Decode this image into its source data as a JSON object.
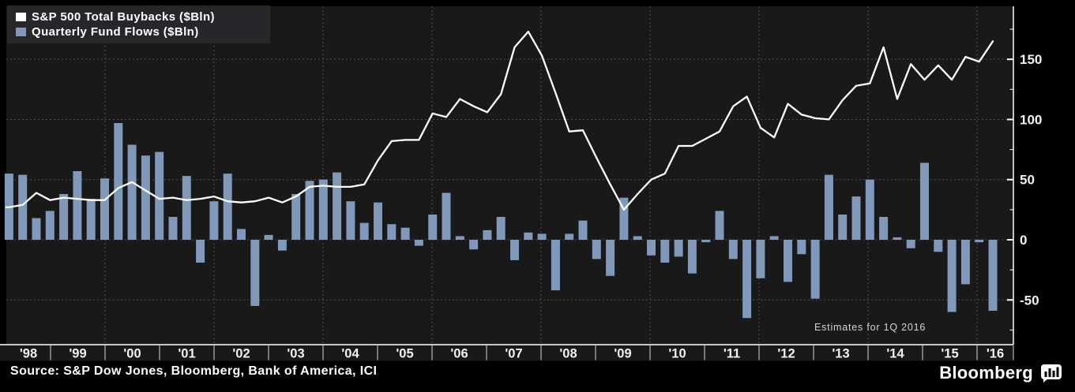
{
  "legend": {
    "series": [
      {
        "label": "S&P 500 Total Buybacks ($Bln)",
        "color": "#ffffff"
      },
      {
        "label": "Quarterly Fund Flows ($Bln)",
        "color": "#8098ba"
      }
    ]
  },
  "annotation": {
    "text": "Estimates for 1Q 2016"
  },
  "footer": {
    "source": "Source: S&P Dow Jones, Bloomberg, Bank of America, ICI",
    "brand": "Bloomberg"
  },
  "colors": {
    "background": "#000000",
    "plot_background": "#191919",
    "bar": "#8098ba",
    "line": "#ffffff",
    "grid": "#505050",
    "axis": "#ffffff",
    "tick_label": "#f2f2f2",
    "legend_background": "#27272b",
    "annotation_text": "#d4d4d4"
  },
  "chart_data": {
    "type": "combo",
    "x_unit": "quarter",
    "x_start": "1998 Q1",
    "x_end": "2016 Q1",
    "x_year_labels": [
      "'98",
      "'99",
      "'00",
      "'01",
      "'02",
      "'03",
      "'04",
      "'05",
      "'06",
      "'07",
      "'08",
      "'09",
      "'10",
      "'11",
      "'12",
      "'13",
      "'14",
      "'15",
      "'16"
    ],
    "y_axis": {
      "major_ticks": [
        150,
        100,
        50,
        0,
        -50
      ],
      "minor_ticks": [
        175,
        125,
        75,
        25,
        -25,
        -75
      ],
      "ylim": [
        -87,
        194
      ]
    },
    "grid": "dashed",
    "legend_position": "top-left",
    "series": [
      {
        "name": "S&P 500 Total Buybacks ($Bln)",
        "type": "line",
        "color": "#ffffff",
        "values": [
          27,
          29,
          39,
          33,
          35,
          34,
          33,
          33,
          43,
          48,
          41,
          34,
          35,
          33,
          34,
          36,
          32,
          31,
          32,
          35,
          31,
          36,
          44,
          45,
          44,
          44,
          46,
          66,
          82,
          83,
          83,
          105,
          102,
          117,
          111,
          106,
          121,
          160,
          173,
          153,
          122,
          90,
          91,
          68,
          46,
          25,
          38,
          50,
          55,
          78,
          78,
          84,
          90,
          111,
          119,
          93,
          85,
          113,
          104,
          101,
          100,
          116,
          128,
          130,
          160,
          117,
          146,
          133,
          145,
          133,
          152,
          148,
          165
        ]
      },
      {
        "name": "Quarterly Fund Flows ($Bln)",
        "type": "bar",
        "color": "#8098ba",
        "values": [
          55,
          54,
          18,
          24,
          38,
          57,
          34,
          51,
          97,
          79,
          70,
          73,
          19,
          53,
          -19,
          32,
          55,
          9,
          -55,
          4,
          -9,
          38,
          49,
          50,
          56,
          32,
          14,
          31,
          13,
          10,
          -5,
          21,
          39,
          3,
          -8,
          8,
          19,
          -17,
          6,
          5,
          -42,
          5,
          16,
          -16,
          -30,
          35,
          3,
          -13,
          -19,
          -14,
          -28,
          -2,
          24,
          -16,
          -65,
          -32,
          3,
          -35,
          -12,
          -49,
          54,
          21,
          36,
          50,
          19,
          2,
          -7,
          64,
          -10,
          -60,
          -37,
          -2,
          -59
        ]
      }
    ],
    "annotation": "Estimates for 1Q 2016"
  }
}
